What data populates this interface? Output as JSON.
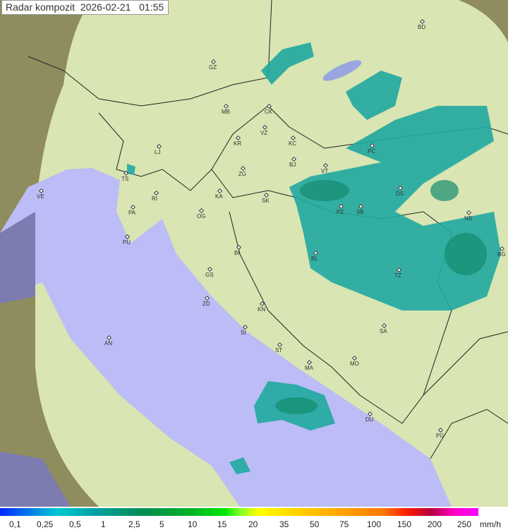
{
  "title": "Radar kompozit",
  "date": "2026-02-21",
  "time": "01:55",
  "legend": {
    "unit": "mm/h",
    "ticks": [
      "0,1",
      "0,25",
      "0,5",
      "1",
      "2,5",
      "5",
      "10",
      "15",
      "20",
      "35",
      "50",
      "75",
      "100",
      "150",
      "200",
      "250"
    ]
  },
  "colors": {
    "sea": "#bcbcf4",
    "coverage": "#d6e6b0",
    "outside": "#8a8a5a",
    "echo": "#1fa9a0"
  },
  "cities": [
    {
      "code": "BD"
    },
    {
      "code": "GZ"
    },
    {
      "code": "MB"
    },
    {
      "code": "CK"
    },
    {
      "code": "VZ"
    },
    {
      "code": "KR"
    },
    {
      "code": "KC"
    },
    {
      "code": "LJ"
    },
    {
      "code": "BJ"
    },
    {
      "code": "PC"
    },
    {
      "code": "VT"
    },
    {
      "code": "ZG"
    },
    {
      "code": "TS"
    },
    {
      "code": "VE"
    },
    {
      "code": "DS"
    },
    {
      "code": "RI"
    },
    {
      "code": "KA"
    },
    {
      "code": "SK"
    },
    {
      "code": "NS"
    },
    {
      "code": "PA"
    },
    {
      "code": "OG"
    },
    {
      "code": "PZ"
    },
    {
      "code": "SB"
    },
    {
      "code": "PU"
    },
    {
      "code": "BG"
    },
    {
      "code": "BI"
    },
    {
      "code": "BL"
    },
    {
      "code": "GS"
    },
    {
      "code": "TZ"
    },
    {
      "code": "ZD"
    },
    {
      "code": "KN"
    },
    {
      "code": "SA"
    },
    {
      "code": "SI"
    },
    {
      "code": "AN"
    },
    {
      "code": "ST"
    },
    {
      "code": "MA"
    },
    {
      "code": "MO"
    },
    {
      "code": "DU"
    },
    {
      "code": "PG"
    }
  ]
}
